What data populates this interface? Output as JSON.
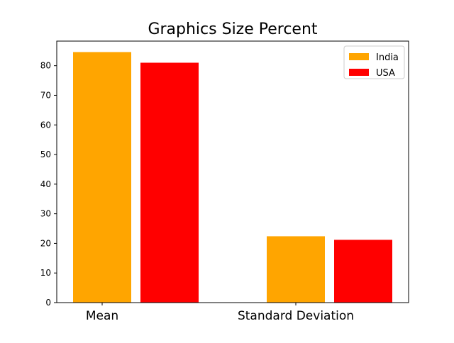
{
  "chart_data": {
    "type": "bar",
    "title": "Graphics Size Percent",
    "xlabel": "",
    "ylabel": "",
    "categories": [
      "Mean",
      "Standard Deviation"
    ],
    "series": [
      {
        "name": "India",
        "color": "#ffa500",
        "values": [
          84.6,
          22.4
        ]
      },
      {
        "name": "USA",
        "color": "#ff0000",
        "values": [
          81.0,
          21.2
        ]
      }
    ],
    "ylim": [
      0,
      88.3
    ],
    "yticks": [
      "0",
      "10",
      "20",
      "30",
      "40",
      "50",
      "60",
      "70",
      "80"
    ],
    "legend_position": "top-right",
    "grid": false
  }
}
